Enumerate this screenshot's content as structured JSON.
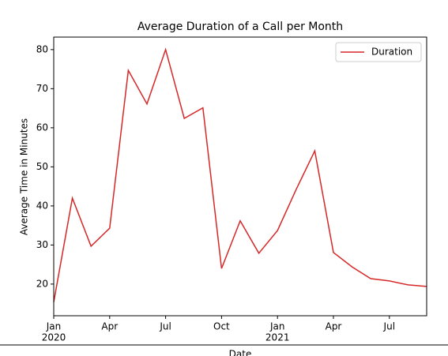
{
  "chart_data": {
    "type": "line",
    "title": "Average Duration of a Call per Month",
    "x_label": "Date",
    "y_label": "Average Time in Minutes",
    "x": [
      "2020-01",
      "2020-02",
      "2020-03",
      "2020-04",
      "2020-05",
      "2020-06",
      "2020-07",
      "2020-08",
      "2020-09",
      "2020-10",
      "2020-11",
      "2020-12",
      "2021-01",
      "2021-02",
      "2021-03",
      "2021-04",
      "2021-05",
      "2021-06",
      "2021-07",
      "2021-08",
      "2021-09"
    ],
    "series": [
      {
        "name": "Duration",
        "color": "#d62728",
        "values": [
          15.4,
          42.0,
          29.7,
          34.3,
          74.7,
          66.1,
          80.0,
          62.4,
          65.1,
          24.0,
          36.2,
          27.9,
          33.7,
          44.2,
          54.1,
          28.1,
          24.4,
          21.4,
          20.8,
          19.8,
          19.4
        ]
      }
    ],
    "xlim": [
      "2020-01",
      "2021-09"
    ],
    "xticks": [
      {
        "value": "2020-01",
        "label": [
          "Jan",
          "2020"
        ]
      },
      {
        "value": "2020-04",
        "label": [
          "Apr"
        ]
      },
      {
        "value": "2020-07",
        "label": [
          "Jul"
        ]
      },
      {
        "value": "2020-10",
        "label": [
          "Oct"
        ]
      },
      {
        "value": "2021-01",
        "label": [
          "Jan",
          "2021"
        ]
      },
      {
        "value": "2021-04",
        "label": [
          "Apr"
        ]
      },
      {
        "value": "2021-07",
        "label": [
          "Jul"
        ]
      }
    ],
    "ylim": [
      11.9,
      83.2
    ],
    "yticks": [
      20,
      30,
      40,
      50,
      60,
      70,
      80
    ],
    "legend": "upper right"
  }
}
